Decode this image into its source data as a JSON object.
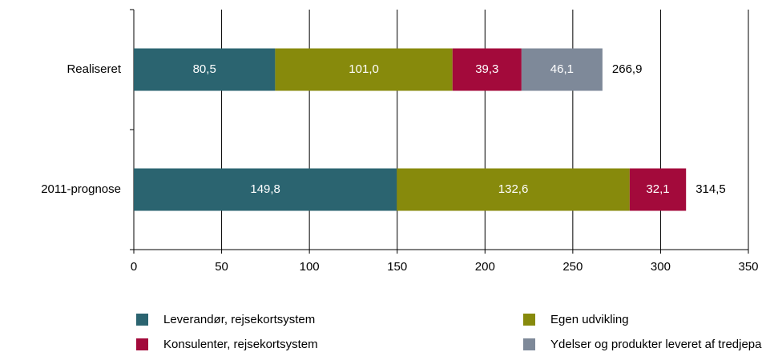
{
  "chart_data": {
    "type": "bar",
    "orientation": "horizontal",
    "stacked": true,
    "categories": [
      "Realiseret",
      "2011-prognose"
    ],
    "series": [
      {
        "name": "Leverandør, rejsekortsystem",
        "color": "#2b6470",
        "values": [
          80.5,
          149.8
        ],
        "value_labels": [
          "80,5",
          "149,8"
        ]
      },
      {
        "name": "Egen udvikling",
        "color": "#878a0c",
        "values": [
          101.0,
          132.6
        ],
        "value_labels": [
          "101,0",
          "132,6"
        ]
      },
      {
        "name": "Konsulenter, rejsekortsystem",
        "color": "#a30a3b",
        "values": [
          39.3,
          32.1
        ],
        "value_labels": [
          "39,3",
          "32,1"
        ]
      },
      {
        "name": "Ydelser og produkter leveret af tredjepart",
        "color": "#7e8999",
        "values": [
          46.1,
          null
        ],
        "value_labels": [
          "46,1",
          null
        ]
      }
    ],
    "totals": [
      266.9,
      314.5
    ],
    "total_labels": [
      "266,9",
      "314,5"
    ],
    "xlim": [
      0,
      350
    ],
    "xticks": [
      0,
      50,
      100,
      150,
      200,
      250,
      300,
      350
    ],
    "grid": true
  }
}
